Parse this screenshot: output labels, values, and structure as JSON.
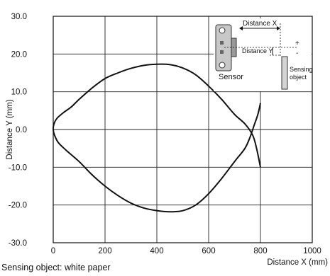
{
  "chart_data": {
    "type": "line",
    "xlabel": "Distance X (mm)",
    "ylabel": "Distance Y (mm)",
    "xlim": [
      0,
      1000
    ],
    "ylim": [
      -30,
      30
    ],
    "x_ticks": [
      "0",
      "200",
      "400",
      "600",
      "800",
      "1000"
    ],
    "y_ticks": [
      "30.0",
      "20.0",
      "10.0",
      "0.0",
      "-10.0",
      "-20.0",
      "-30.0"
    ],
    "grid": true,
    "series": [
      {
        "color": "#111111",
        "points": [
          [
            800,
            7.0
          ],
          [
            790,
            4.0
          ],
          [
            775,
            1.0
          ],
          [
            760,
            -2.0
          ],
          [
            740,
            -5.0
          ],
          [
            700,
            -8.5
          ],
          [
            650,
            -13.0
          ],
          [
            600,
            -17.0
          ],
          [
            550,
            -20.0
          ],
          [
            500,
            -21.5
          ],
          [
            450,
            -21.8
          ],
          [
            400,
            -21.5
          ],
          [
            350,
            -20.8
          ],
          [
            300,
            -19.5
          ],
          [
            250,
            -17.5
          ],
          [
            200,
            -15.0
          ],
          [
            150,
            -12.0
          ],
          [
            100,
            -8.5
          ],
          [
            50,
            -5.5
          ],
          [
            20,
            -3.5
          ],
          [
            5,
            -1.5
          ],
          [
            0,
            0.0
          ],
          [
            3,
            1.5
          ],
          [
            15,
            3.0
          ],
          [
            40,
            4.5
          ],
          [
            70,
            6.0
          ],
          [
            100,
            8.0
          ],
          [
            150,
            11.0
          ],
          [
            200,
            13.5
          ],
          [
            250,
            15.0
          ],
          [
            300,
            16.2
          ],
          [
            350,
            17.0
          ],
          [
            400,
            17.3
          ],
          [
            450,
            17.2
          ],
          [
            500,
            16.3
          ],
          [
            550,
            14.5
          ],
          [
            600,
            11.5
          ],
          [
            650,
            8.0
          ],
          [
            700,
            4.0
          ],
          [
            740,
            1.5
          ],
          [
            770,
            -1.5
          ],
          [
            785,
            -5.0
          ],
          [
            800,
            -10.0
          ]
        ]
      }
    ],
    "inset": {
      "sensor_label": "Sensor",
      "distance_x_label": "Distance X",
      "distance_y_label": "Distance Y",
      "object_label_line1": "Sensing",
      "object_label_line2": "object",
      "plus": "+",
      "minus": "-"
    }
  },
  "caption": "Sensing object: white paper"
}
